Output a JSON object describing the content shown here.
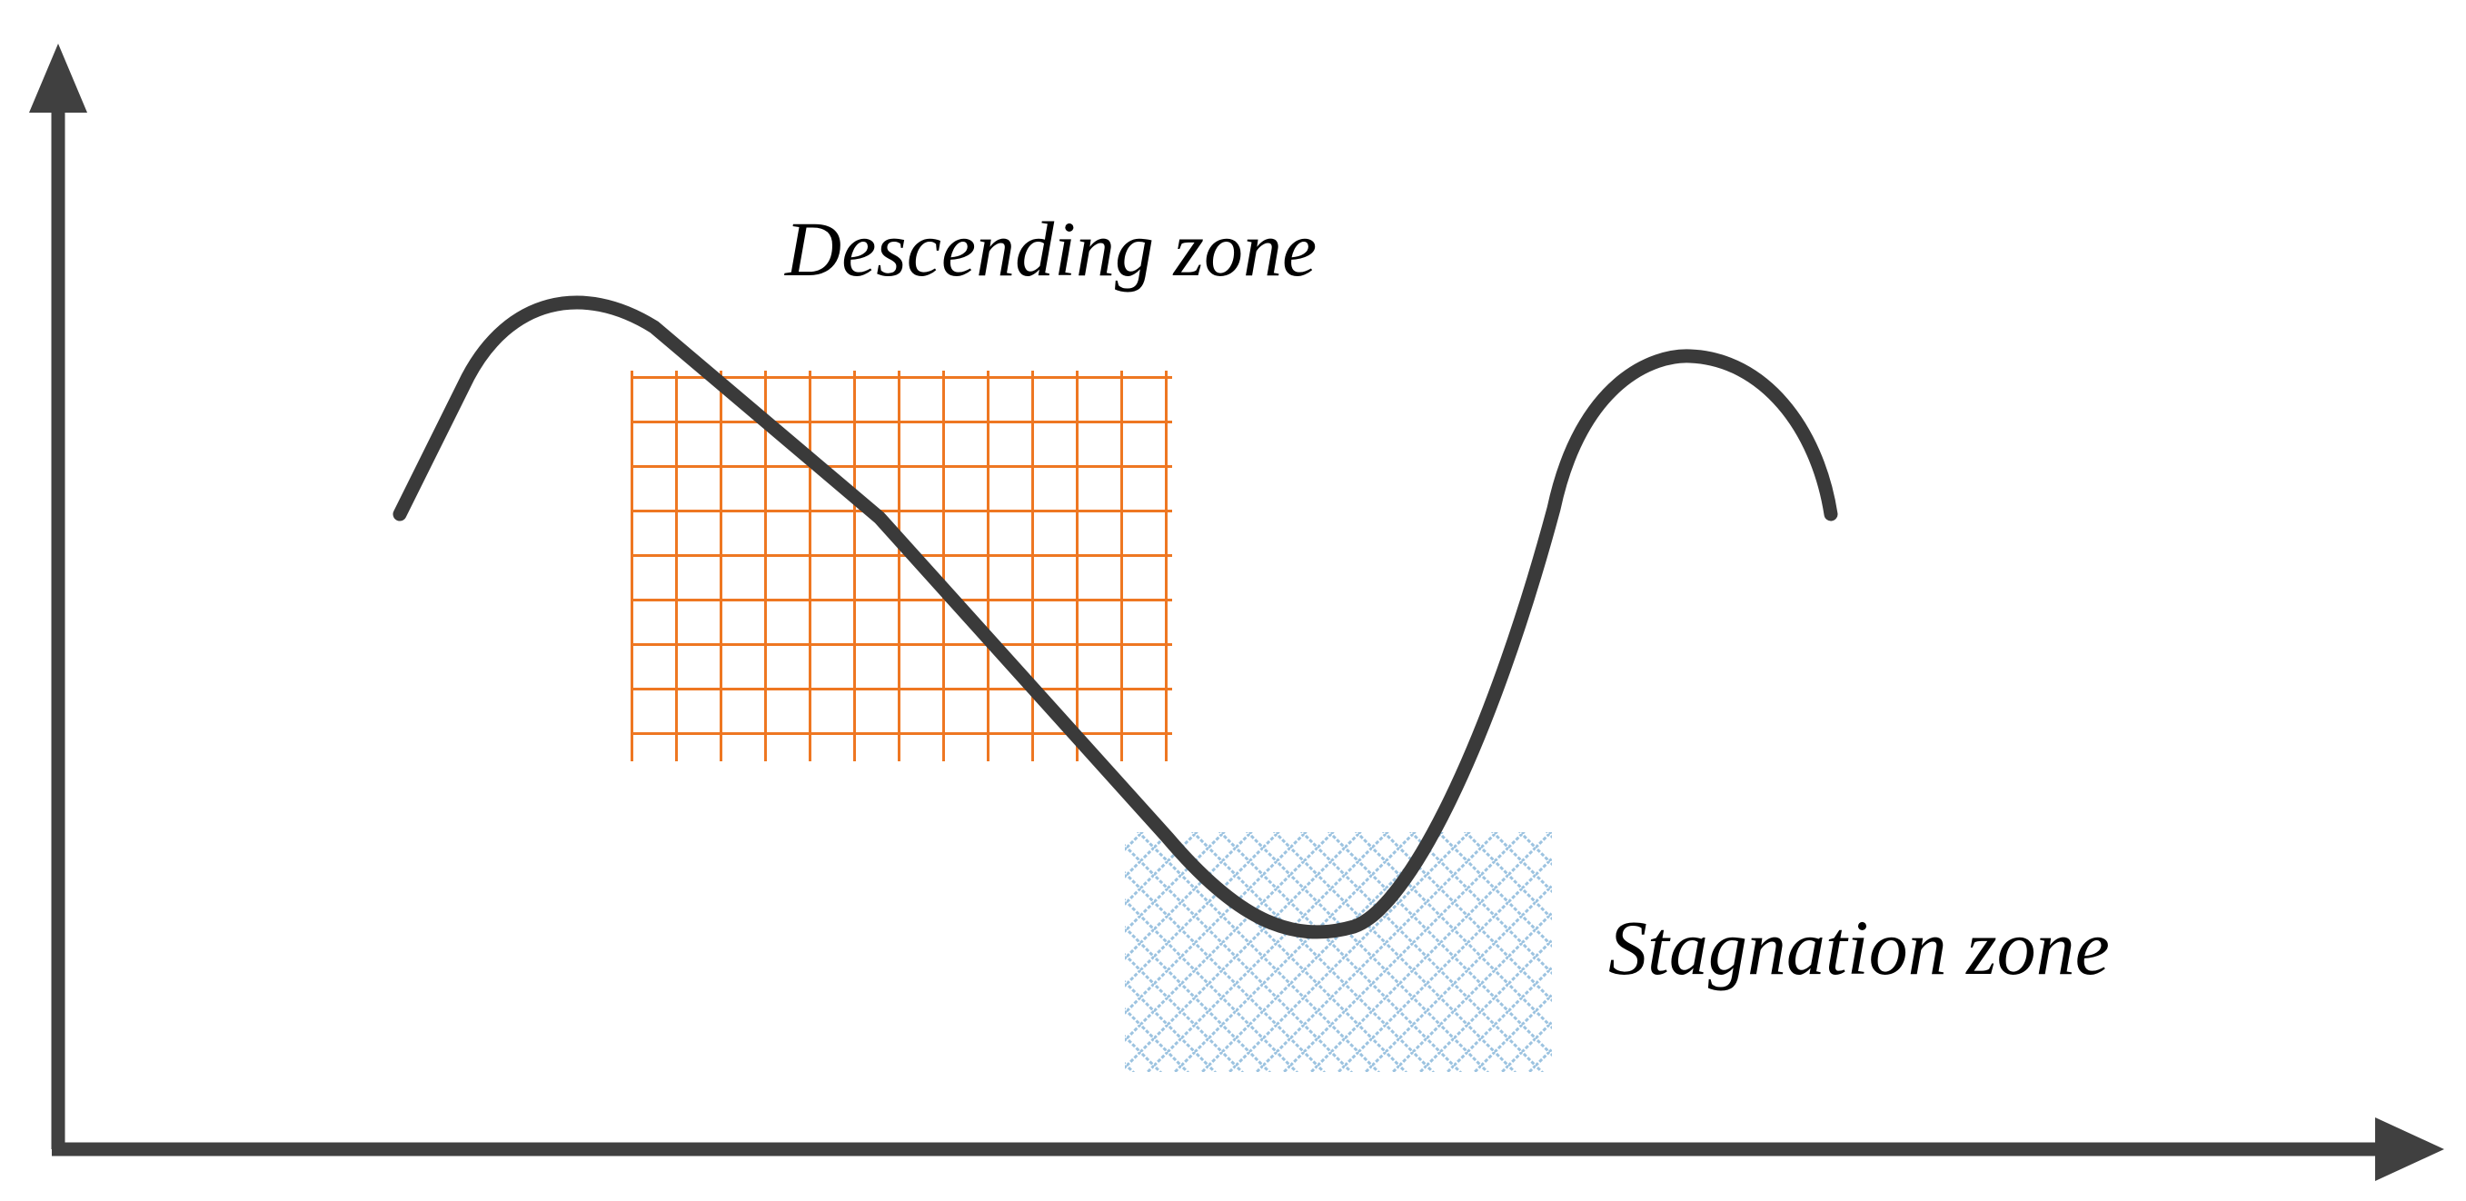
{
  "labels": {
    "descending": "Descending zone",
    "stagnation": "Stagnation zone"
  },
  "colors": {
    "axis": "#404040",
    "curve": "#3a3a3a",
    "descending_grid": "#ee7722",
    "stagnation_pattern": "#9cc3e0",
    "background": "#ffffff"
  }
}
